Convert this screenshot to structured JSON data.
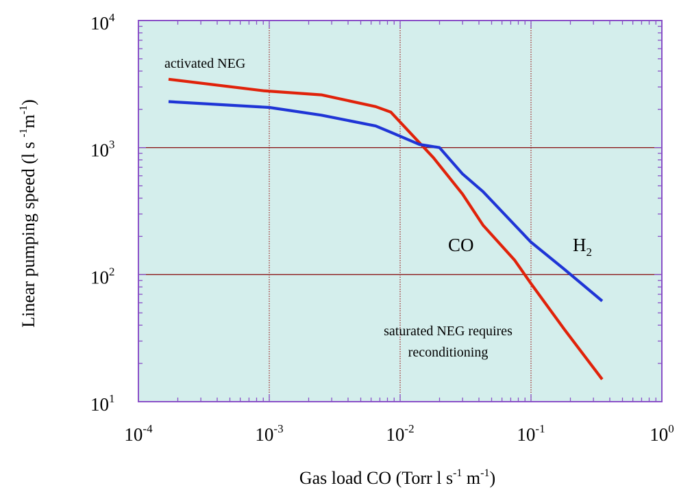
{
  "chart_data": {
    "type": "line",
    "x_scale": "log",
    "y_scale": "log",
    "xlim": [
      0.0001,
      1
    ],
    "ylim": [
      10,
      10000
    ],
    "x_ticks": [
      {
        "base": "10",
        "exp": "-4"
      },
      {
        "base": "10",
        "exp": "-3"
      },
      {
        "base": "10",
        "exp": "-2"
      },
      {
        "base": "10",
        "exp": "-1"
      },
      {
        "base": "10",
        "exp": "0"
      }
    ],
    "y_ticks": [
      {
        "base": "10",
        "exp": "1"
      },
      {
        "base": "10",
        "exp": "2"
      },
      {
        "base": "10",
        "exp": "3"
      },
      {
        "base": "10",
        "exp": "4"
      }
    ],
    "xlabel": {
      "a": "Gas load CO (Torr l s",
      "b": "-1",
      "c": " m",
      "d": "-1",
      "e": ")"
    },
    "ylabel": {
      "a": "Linear pumping speed (l s ",
      "b": "-1",
      "c": "m",
      "d": "-1",
      "e": ")"
    },
    "grid": "major decades only",
    "plot_background": "#d4eeec",
    "frame_color": "#8a4fc7",
    "vertical_grid_color": "#9b1c1c",
    "horizontal_grid_color": "#8b1a1a",
    "series": [
      {
        "color": "#e0220a",
        "x": [
          0.00017,
          0.0009,
          0.0025,
          0.0065,
          0.0085,
          0.018,
          0.03,
          0.043,
          0.075,
          0.1,
          0.18,
          0.35
        ],
        "y": [
          3450,
          2800,
          2600,
          2100,
          1900,
          830,
          430,
          245,
          130,
          85,
          37,
          15
        ]
      },
      {
        "color": "#1f35d6",
        "x": [
          0.00017,
          0.001,
          0.0025,
          0.0065,
          0.0085,
          0.014,
          0.02,
          0.03,
          0.043,
          0.1,
          0.18,
          0.35
        ],
        "y": [
          2300,
          2070,
          1800,
          1480,
          1320,
          1060,
          1000,
          620,
          450,
          180,
          110,
          62
        ]
      }
    ],
    "annotations": {
      "activated": "activated NEG",
      "co": "CO",
      "h2_main": "H",
      "h2_sub": "2",
      "saturated_line1": "saturated NEG requires",
      "saturated_line2": "reconditioning"
    }
  }
}
